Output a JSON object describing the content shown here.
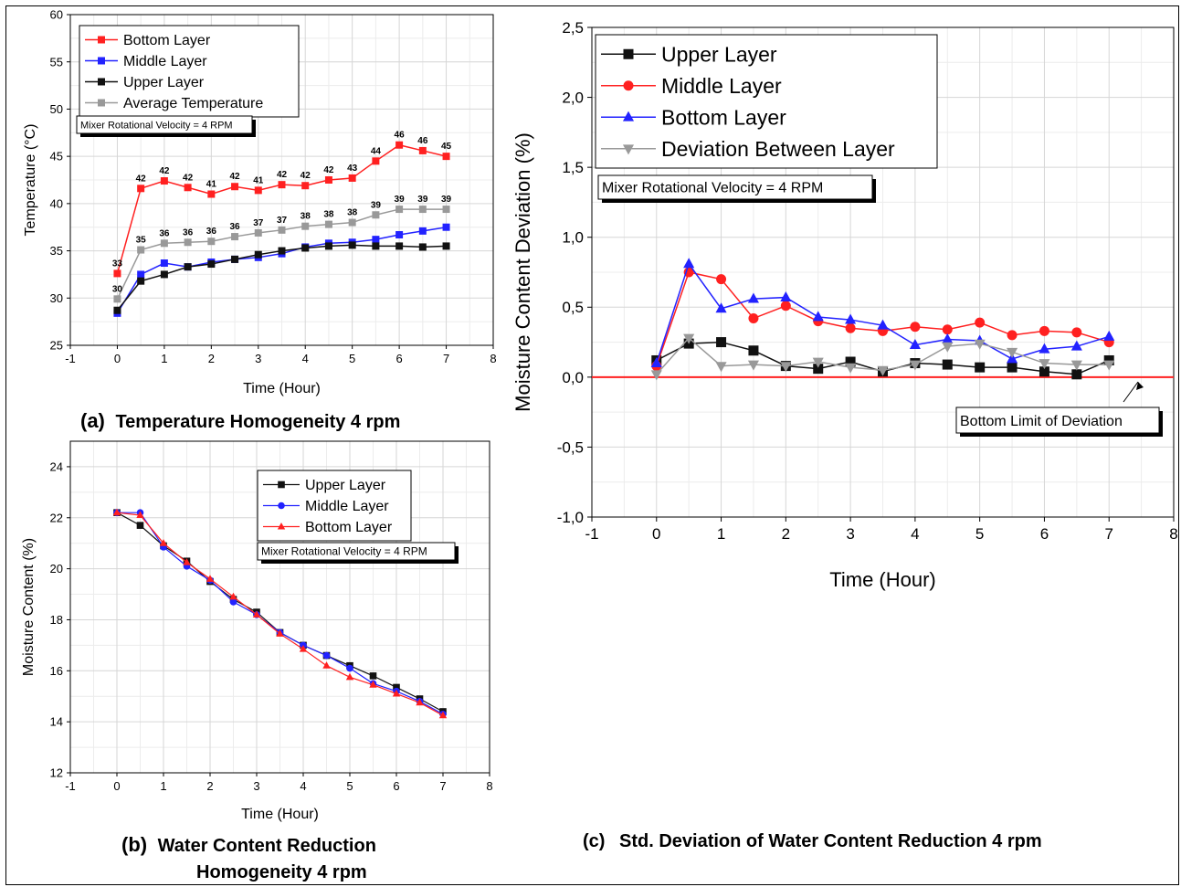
{
  "captions": {
    "a_prefix": "(a)",
    "a_text": "Temperature Homogeneity 4 rpm",
    "b_prefix": "(b)",
    "b_text_1": "Water Content Reduction",
    "b_text_2": "Homogeneity 4 rpm",
    "c_prefix": "(c)",
    "c_text": "Std. Deviation of Water Content Reduction 4 rpm"
  },
  "chart_data": [
    {
      "id": "a",
      "type": "line",
      "xlabel": "Time (Hour)",
      "ylabel": "Temperature (°C)",
      "xlim": [
        -1,
        8
      ],
      "ylim": [
        25,
        60
      ],
      "xticks": [
        -1,
        0,
        1,
        2,
        3,
        4,
        5,
        6,
        7,
        8
      ],
      "yticks": [
        25,
        30,
        35,
        40,
        45,
        50,
        55,
        60
      ],
      "grid": true,
      "legend": "top-left",
      "annotation": "Mixer Rotational Velocity = 4 RPM",
      "x": [
        0,
        0.5,
        1,
        1.5,
        2,
        2.5,
        3,
        3.5,
        4,
        4.5,
        5,
        5.5,
        6,
        6.5,
        7
      ],
      "series": [
        {
          "name": "Bottom Layer",
          "color": "#ff2020",
          "marker": "square",
          "values": [
            32.6,
            41.6,
            42.4,
            41.7,
            41.0,
            41.8,
            41.4,
            42.0,
            41.9,
            42.5,
            42.7,
            44.5,
            46.2,
            45.6,
            45.0
          ],
          "labels": [
            "33",
            "42",
            "42",
            "42",
            "41",
            "42",
            "41",
            "42",
            "42",
            "42",
            "43",
            "44",
            "46",
            "46",
            "45"
          ]
        },
        {
          "name": "Middle Layer",
          "color": "#2222ff",
          "marker": "square",
          "values": [
            28.4,
            32.5,
            33.7,
            33.3,
            33.8,
            34.1,
            34.3,
            34.7,
            35.4,
            35.8,
            35.9,
            36.2,
            36.7,
            37.1,
            37.5
          ]
        },
        {
          "name": "Upper Layer",
          "color": "#111111",
          "marker": "square",
          "values": [
            28.7,
            31.8,
            32.5,
            33.3,
            33.6,
            34.1,
            34.6,
            35.0,
            35.3,
            35.5,
            35.6,
            35.5,
            35.5,
            35.4,
            35.5
          ]
        },
        {
          "name": "Average Temperature",
          "color": "#999999",
          "marker": "square",
          "values": [
            29.9,
            35.1,
            35.8,
            35.9,
            36.0,
            36.5,
            36.9,
            37.2,
            37.6,
            37.8,
            38.0,
            38.8,
            39.4,
            39.4,
            39.4
          ],
          "labels": [
            "30",
            "35",
            "36",
            "36",
            "36",
            "36",
            "37",
            "37",
            "38",
            "38",
            "38",
            "39",
            "39",
            "39",
            "39"
          ]
        }
      ]
    },
    {
      "id": "b",
      "type": "line",
      "xlabel": "Time (Hour)",
      "ylabel": "Moisture Content (%)",
      "xlim": [
        -1,
        8
      ],
      "ylim": [
        12,
        25
      ],
      "xticks": [
        -1,
        0,
        1,
        2,
        3,
        4,
        5,
        6,
        7,
        8
      ],
      "yticks": [
        12,
        14,
        16,
        18,
        20,
        22,
        24
      ],
      "grid": true,
      "legend": "top-right",
      "annotation": "Mixer Rotational Velocity = 4 RPM",
      "x": [
        0,
        0.5,
        1,
        1.5,
        2,
        2.5,
        3,
        3.5,
        4,
        4.5,
        5,
        5.5,
        6,
        6.5,
        7
      ],
      "series": [
        {
          "name": "Upper Layer",
          "color": "#111111",
          "marker": "square",
          "values": [
            22.2,
            21.7,
            20.9,
            20.3,
            19.5,
            18.8,
            18.3,
            17.5,
            17.0,
            16.6,
            16.2,
            15.8,
            15.35,
            14.9,
            14.4
          ]
        },
        {
          "name": "Middle Layer",
          "color": "#2222ff",
          "marker": "circle",
          "values": [
            22.2,
            22.2,
            20.85,
            20.1,
            19.55,
            18.7,
            18.2,
            17.5,
            17.0,
            16.6,
            16.1,
            15.5,
            15.2,
            14.8,
            14.3
          ]
        },
        {
          "name": "Bottom Layer",
          "color": "#ff2020",
          "marker": "triangle",
          "values": [
            22.2,
            22.1,
            21.0,
            20.25,
            19.6,
            18.9,
            18.2,
            17.45,
            16.85,
            16.2,
            15.75,
            15.45,
            15.1,
            14.75,
            14.25
          ]
        }
      ]
    },
    {
      "id": "c",
      "type": "line",
      "xlabel": "Time (Hour)",
      "ylabel": "Moisture Content Deviation (%)",
      "xlim": [
        -1,
        8
      ],
      "ylim": [
        -1.0,
        2.5
      ],
      "xticks": [
        -1,
        0,
        1,
        2,
        3,
        4,
        5,
        6,
        7,
        8
      ],
      "yticks": [
        -1.0,
        -0.5,
        0.0,
        0.5,
        1.0,
        1.5,
        2.0,
        2.5
      ],
      "ytick_labels": [
        "-1,0",
        "-0,5",
        "0,0",
        "0,5",
        "1,0",
        "1,5",
        "2,0",
        "2,5"
      ],
      "grid": true,
      "legend": "top-left",
      "annotation": "Mixer Rotational Velocity = 4 RPM",
      "reference_line": {
        "y": 0,
        "color": "#ff2020",
        "label": "Bottom Limit of Deviation"
      },
      "x": [
        0,
        0.5,
        1,
        1.5,
        2,
        2.5,
        3,
        3.5,
        4,
        4.5,
        5,
        5.5,
        6,
        6.5,
        7
      ],
      "series": [
        {
          "name": "Upper Layer",
          "color": "#111111",
          "marker": "square",
          "values": [
            0.12,
            0.24,
            0.25,
            0.19,
            0.08,
            0.06,
            0.11,
            0.04,
            0.1,
            0.09,
            0.07,
            0.07,
            0.04,
            0.02,
            0.12
          ]
        },
        {
          "name": "Middle Layer",
          "color": "#ff2020",
          "marker": "circle",
          "values": [
            0.08,
            0.75,
            0.7,
            0.42,
            0.51,
            0.4,
            0.35,
            0.33,
            0.36,
            0.34,
            0.39,
            0.3,
            0.33,
            0.32,
            0.25
          ]
        },
        {
          "name": "Bottom Layer",
          "color": "#2222ff",
          "marker": "triangle",
          "values": [
            0.1,
            0.81,
            0.49,
            0.56,
            0.57,
            0.43,
            0.41,
            0.37,
            0.23,
            0.27,
            0.26,
            0.13,
            0.2,
            0.22,
            0.29
          ]
        },
        {
          "name": "Deviation Between Layer",
          "color": "#999999",
          "marker": "triangle-down",
          "values": [
            0.02,
            0.28,
            0.08,
            0.09,
            0.08,
            0.11,
            0.07,
            0.05,
            0.09,
            0.22,
            0.24,
            0.18,
            0.1,
            0.09,
            0.09
          ]
        }
      ]
    }
  ]
}
